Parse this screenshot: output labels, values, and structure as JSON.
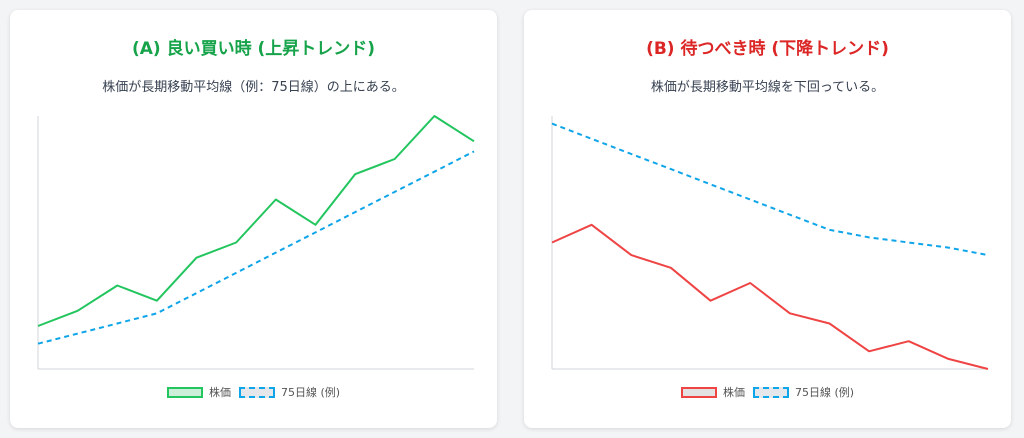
{
  "colors": {
    "uptrend_title": "#16a34a",
    "downtrend_title": "#dc2626",
    "price_up": "#22c55e",
    "price_down": "#ef4444",
    "moving_average": "#0ea5e9",
    "axis": "#d1d5db"
  },
  "cards": [
    {
      "title": "(A) 良い買い時 (上昇トレンド)",
      "subtitle": "株価が長期移動平均線（例：75日線）の上にある。",
      "legend": {
        "price": "株価",
        "ma": "75日線 (例)"
      }
    },
    {
      "title": "(B) 待つべき時 (下降トレンド)",
      "subtitle": "株価が長期移動平均線を下回っている。",
      "legend": {
        "price": "株価",
        "ma": "75日線 (例)"
      }
    }
  ],
  "chart_data": [
    {
      "type": "line",
      "title": "(A) 良い買い時 (上昇トレンド)",
      "ylim": [
        0,
        100
      ],
      "grid": false,
      "legend_position": "bottom",
      "x": [
        0,
        1,
        2,
        3,
        4,
        5,
        6,
        7,
        8,
        9,
        10,
        11
      ],
      "series": [
        {
          "name": "株価",
          "style": "solid",
          "values": [
            17,
            23,
            33,
            27,
            44,
            50,
            67,
            57,
            77,
            83,
            100,
            90
          ]
        },
        {
          "name": "75日線 (例)",
          "style": "dashed",
          "values": [
            10,
            14,
            18,
            22,
            30,
            38,
            46,
            54,
            62,
            70,
            78,
            86
          ]
        }
      ]
    },
    {
      "type": "line",
      "title": "(B) 待つべき時 (下降トレンド)",
      "ylim": [
        0,
        100
      ],
      "grid": false,
      "legend_position": "bottom",
      "x": [
        0,
        1,
        2,
        3,
        4,
        5,
        6,
        7,
        8,
        9,
        10,
        11
      ],
      "series": [
        {
          "name": "株価",
          "style": "solid",
          "values": [
            50,
            57,
            45,
            40,
            27,
            34,
            22,
            18,
            7,
            11,
            4,
            0
          ]
        },
        {
          "name": "75日線 (例)",
          "style": "dashed",
          "values": [
            97,
            91,
            85,
            79,
            73,
            67,
            61,
            55,
            52,
            50,
            48,
            45
          ]
        }
      ]
    }
  ]
}
